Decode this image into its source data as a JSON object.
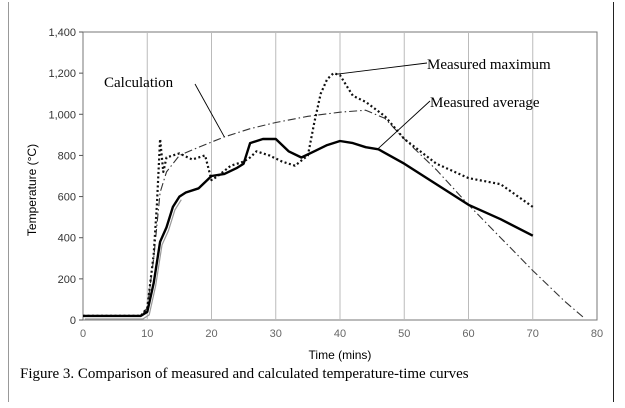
{
  "caption": "Figure 3. Comparison of measured and calculated temperature-time curves",
  "chart_data": {
    "type": "line",
    "title": "",
    "xlabel": "Time (mins)",
    "ylabel": "Temperature (°C)",
    "xlim": [
      0,
      80
    ],
    "ylim": [
      0,
      1400
    ],
    "xticks": [
      0,
      10,
      20,
      30,
      40,
      50,
      60,
      70,
      80
    ],
    "yticks": [
      0,
      200,
      400,
      600,
      800,
      1000,
      1200,
      1400
    ],
    "xtick_labels": [
      "0",
      "10",
      "20",
      "30",
      "40",
      "50",
      "60",
      "70",
      "80"
    ],
    "ytick_labels": [
      "0",
      "200",
      "400",
      "600",
      "800",
      "1,000",
      "1,200",
      "1,400"
    ],
    "grid": true,
    "series": [
      {
        "name": "Calculation",
        "style": "dash-dot",
        "color": "#333333",
        "x": [
          0,
          9,
          10,
          11,
          12,
          13,
          15,
          18,
          22,
          26,
          30,
          35,
          40,
          44,
          47,
          50,
          55,
          60,
          65,
          70,
          75,
          78
        ],
        "y": [
          20,
          20,
          60,
          300,
          620,
          720,
          800,
          840,
          890,
          930,
          960,
          990,
          1010,
          1020,
          980,
          880,
          730,
          560,
          400,
          240,
          90,
          10
        ]
      },
      {
        "name": "Measured maximum",
        "style": "dotted",
        "color": "#111111",
        "x": [
          0,
          9,
          10,
          11,
          11.5,
          12,
          12.5,
          13,
          14,
          15,
          17,
          19,
          20,
          21,
          23,
          25,
          26,
          27,
          29,
          31,
          33,
          35,
          36,
          37,
          38,
          39,
          40,
          41,
          42,
          44,
          47,
          50,
          55,
          60,
          65,
          70
        ],
        "y": [
          20,
          20,
          60,
          320,
          560,
          880,
          720,
          790,
          800,
          810,
          780,
          800,
          680,
          700,
          750,
          770,
          790,
          820,
          800,
          770,
          750,
          800,
          960,
          1100,
          1170,
          1200,
          1190,
          1140,
          1090,
          1060,
          990,
          880,
          760,
          690,
          660,
          550
        ]
      },
      {
        "name": "Measured average",
        "style": "solid",
        "color": "#000000",
        "x": [
          0,
          9,
          10,
          11,
          12,
          13,
          14,
          15,
          16,
          18,
          20,
          22,
          24,
          25,
          26,
          28,
          30,
          32,
          34,
          36,
          38,
          40,
          42,
          44,
          46,
          50,
          55,
          60,
          65,
          70
        ],
        "y": [
          20,
          20,
          40,
          180,
          380,
          450,
          550,
          600,
          620,
          640,
          700,
          710,
          740,
          760,
          860,
          880,
          880,
          820,
          790,
          820,
          850,
          870,
          860,
          840,
          830,
          760,
          660,
          560,
          490,
          410
        ]
      }
    ],
    "annotations": [
      {
        "text": "Calculation",
        "target_series": "Calculation"
      },
      {
        "text": "Measured maximum",
        "target_series": "Measured maximum"
      },
      {
        "text": "Measured average",
        "target_series": "Measured average"
      }
    ]
  }
}
